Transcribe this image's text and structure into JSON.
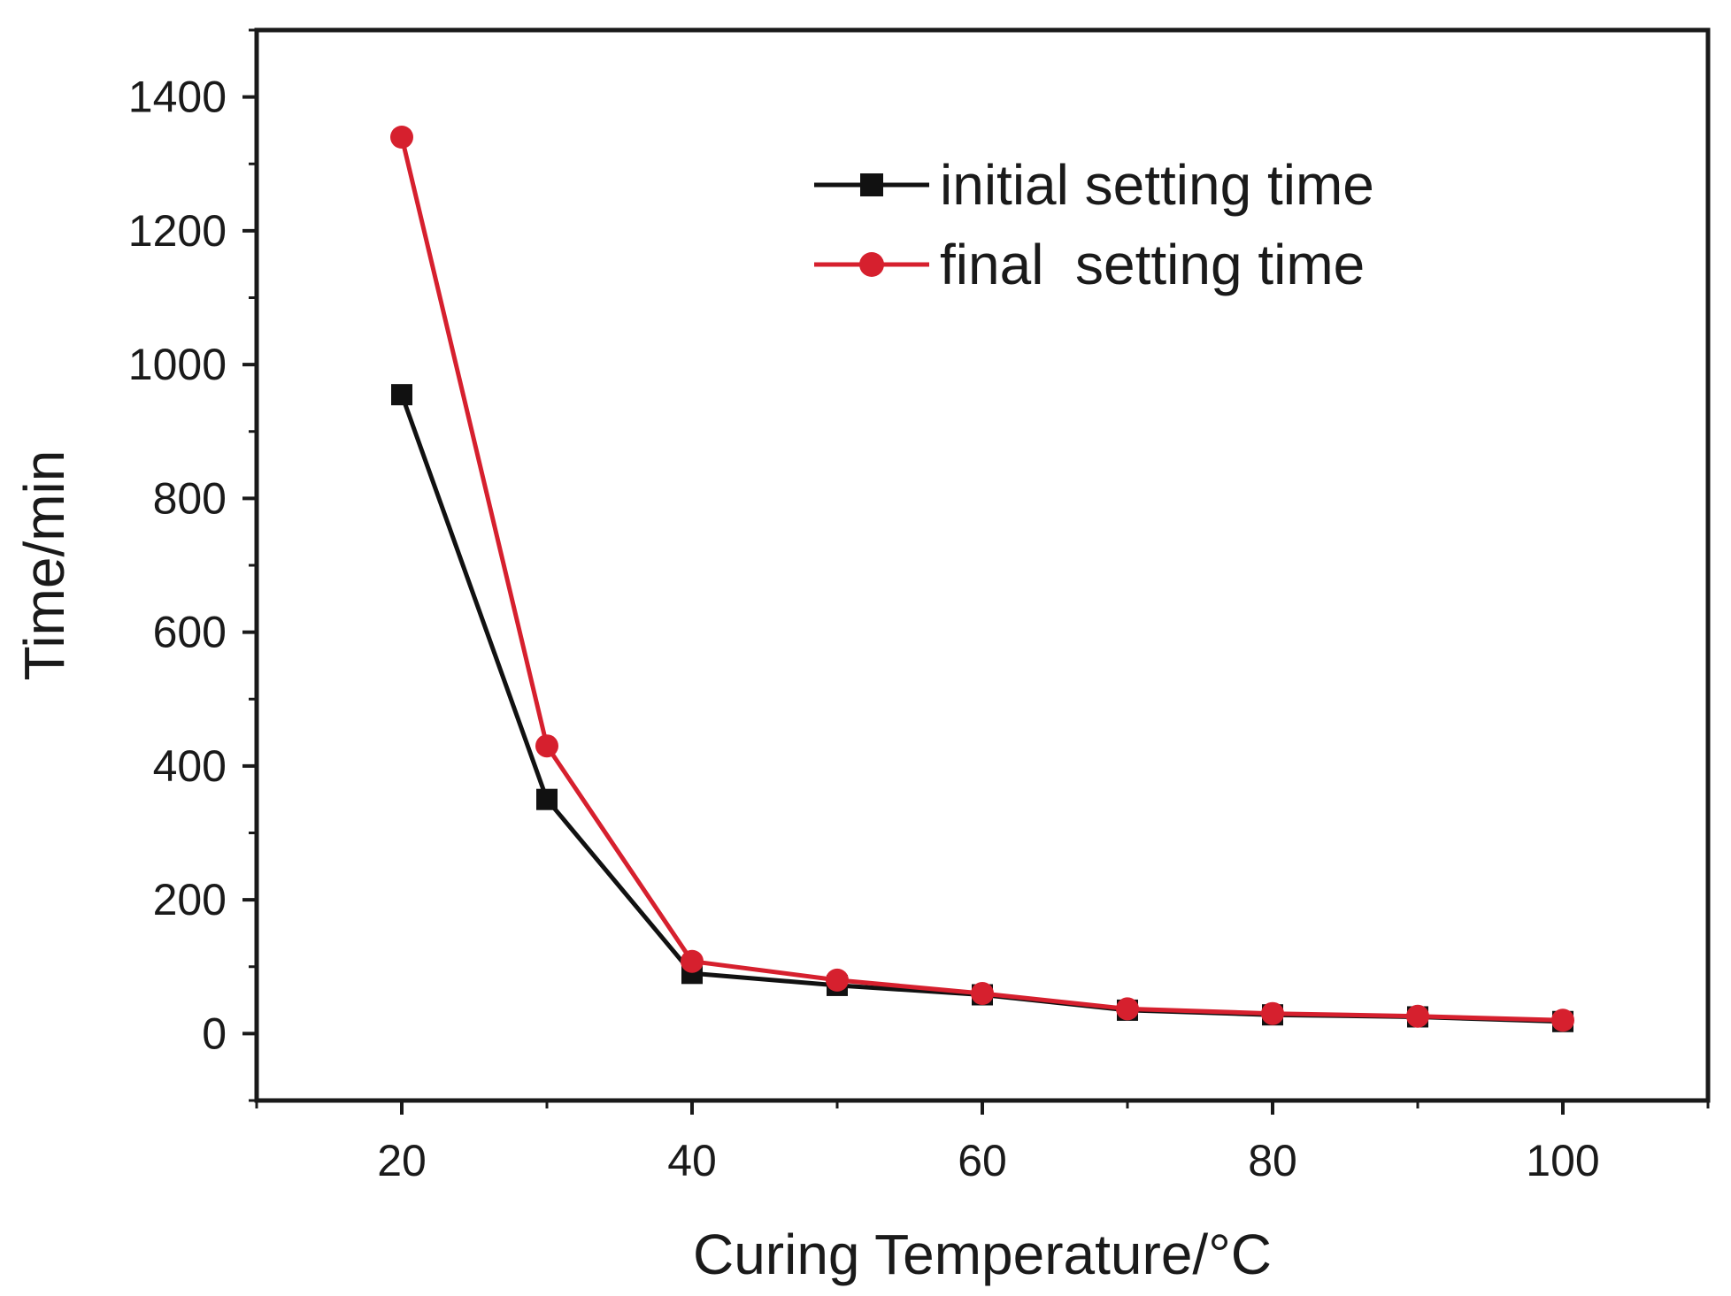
{
  "chart_data": {
    "type": "line",
    "title": "",
    "xlabel": "Curing Temperature/°C",
    "ylabel": "Time/min",
    "xlim": [
      10,
      110
    ],
    "ylim": [
      -100,
      1500
    ],
    "xticks": [
      20,
      40,
      60,
      80,
      100
    ],
    "yticks": [
      0,
      200,
      400,
      600,
      800,
      1000,
      1200,
      1400
    ],
    "grid": false,
    "legend_position": "top-right",
    "x": [
      20,
      30,
      40,
      50,
      60,
      70,
      80,
      90,
      100
    ],
    "series": [
      {
        "name": "initial setting time",
        "color": "#111111",
        "marker": "square",
        "values": [
          955,
          350,
          90,
          72,
          58,
          35,
          28,
          25,
          18
        ]
      },
      {
        "name": "final  setting time",
        "color": "#d6202e",
        "marker": "circle",
        "values": [
          1340,
          430,
          108,
          80,
          60,
          37,
          30,
          26,
          20
        ]
      }
    ]
  }
}
